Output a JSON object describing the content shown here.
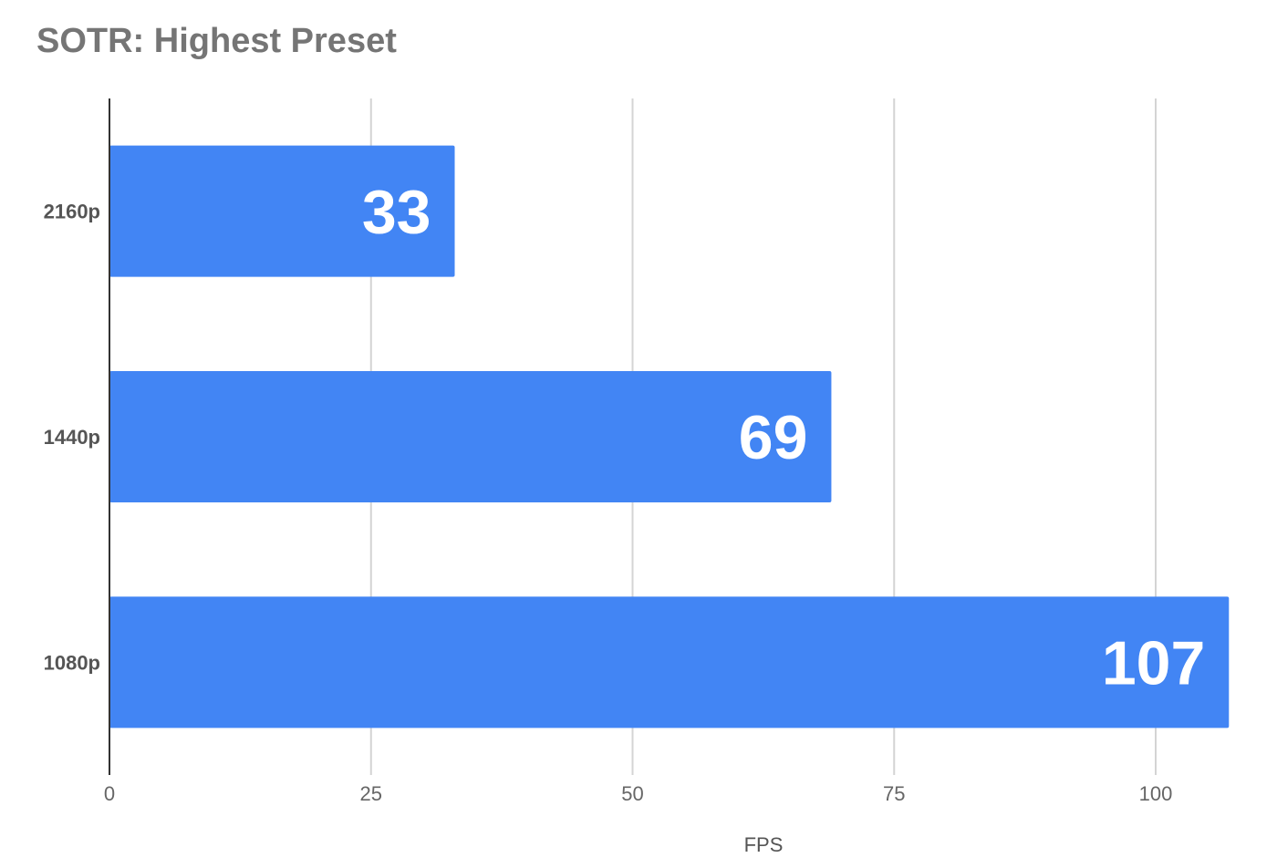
{
  "chart_data": {
    "type": "bar",
    "orientation": "horizontal",
    "title": "SOTR: Highest Preset",
    "xlabel": "FPS",
    "ylabel": "",
    "categories": [
      "2160p",
      "1440p",
      "1080p"
    ],
    "values": [
      33,
      69,
      107
    ],
    "data_labels": [
      "33",
      "69",
      "107"
    ],
    "xlim": [
      0,
      107
    ],
    "xticks": [
      0,
      25,
      50,
      75,
      100
    ],
    "xtick_labels": [
      "0",
      "25",
      "50",
      "75",
      "100"
    ],
    "grid": true,
    "legend": "none",
    "bar_color": "#4285f4"
  }
}
